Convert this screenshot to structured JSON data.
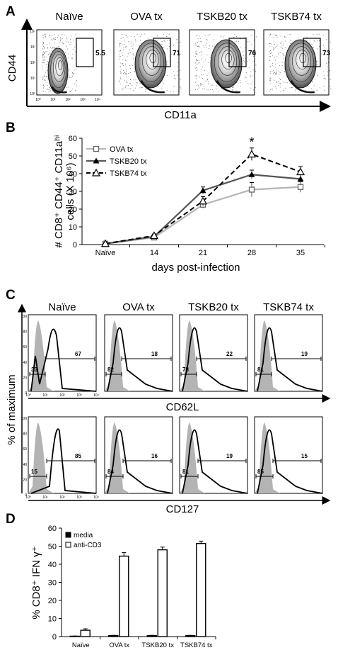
{
  "panel_a": {
    "label": "A",
    "ylabel": "CD44",
    "xlabel": "CD11a",
    "y_ticks": [
      "10⁴",
      "10³",
      "10²",
      "10¹",
      "10⁰"
    ],
    "x_ticks": [
      "10⁰",
      "10¹",
      "10²",
      "10³",
      "10⁴"
    ],
    "plots": [
      {
        "title": "Naïve",
        "gate_percent": "5.5"
      },
      {
        "title": "OVA tx",
        "gate_percent": "71"
      },
      {
        "title": "TSKB20 tx",
        "gate_percent": "76"
      },
      {
        "title": "TSKB74 tx",
        "gate_percent": "73"
      }
    ]
  },
  "panel_c": {
    "label": "C",
    "ylabel": "% of maximum",
    "y_ticks": [
      "100",
      "80",
      "60",
      "40",
      "20",
      "0"
    ],
    "x_ticks": [
      "10⁰",
      "10¹",
      "10²",
      "10³",
      "10⁴"
    ],
    "titles": [
      "Naïve",
      "OVA tx",
      "TSKB20 tx",
      "TSKB74 tx"
    ],
    "rows": [
      {
        "marker": "CD62L",
        "plots": [
          {
            "low": "33",
            "high": "67"
          },
          {
            "low": "82",
            "high": "18"
          },
          {
            "low": "78",
            "high": "22"
          },
          {
            "low": "81",
            "high": "19"
          }
        ]
      },
      {
        "marker": "CD127",
        "plots": [
          {
            "low": "15",
            "high": "85"
          },
          {
            "low": "84",
            "high": "16"
          },
          {
            "low": "81",
            "high": "19"
          },
          {
            "low": "85",
            "high": "15"
          }
        ]
      }
    ]
  },
  "chart_data": [
    {
      "type": "line",
      "panel": "B",
      "ylabel": "# CD8⁺ CD44⁺ CD11aʰⁱ cells (X 10⁶)",
      "xlabel": "days post-infection",
      "categories": [
        "Naïve",
        "14",
        "21",
        "28",
        "35"
      ],
      "ylim": [
        0,
        60
      ],
      "yticks": [
        "0",
        "10",
        "20",
        "30",
        "40",
        "50",
        "60"
      ],
      "annotation": "*",
      "series": [
        {
          "name": "OVA tx",
          "values": [
            0.5,
            4,
            22.5,
            31,
            32.5
          ],
          "errors": [
            0.5,
            1,
            2,
            4,
            3
          ],
          "color": "#b5b5b5",
          "marker": "square",
          "dash": "solid"
        },
        {
          "name": "TSKB20 tx",
          "values": [
            0.5,
            4.5,
            30.5,
            39.5,
            37
          ],
          "errors": [
            0.5,
            1,
            2,
            2.5,
            3
          ],
          "color": "#555555",
          "marker": "triangle-filled",
          "dash": "solid"
        },
        {
          "name": "TSKB74 tx",
          "values": [
            0.5,
            5,
            24.5,
            51,
            41
          ],
          "errors": [
            0.5,
            1,
            2.5,
            3.5,
            3
          ],
          "color": "#000000",
          "marker": "triangle-open",
          "dash": "dashed"
        }
      ]
    },
    {
      "type": "bar",
      "panel": "D",
      "ylabel": "% CD8⁺ IFN γ⁺",
      "categories": [
        "Naïve",
        "OVA tx",
        "TSKB20 tx",
        "TSKB74 tx"
      ],
      "ylim": [
        0,
        60
      ],
      "yticks": [
        "0",
        "10",
        "20",
        "30",
        "40",
        "50",
        "60"
      ],
      "series": [
        {
          "name": "media",
          "values": [
            0.2,
            0.5,
            0.5,
            0.5
          ],
          "errors": [
            0.1,
            0.2,
            0.2,
            0.2
          ],
          "color": "#000000"
        },
        {
          "name": "anti-CD3",
          "values": [
            3.5,
            44.5,
            48,
            51.5
          ],
          "errors": [
            0.8,
            2,
            1.5,
            1.3
          ],
          "color": "#ffffff"
        }
      ]
    }
  ]
}
